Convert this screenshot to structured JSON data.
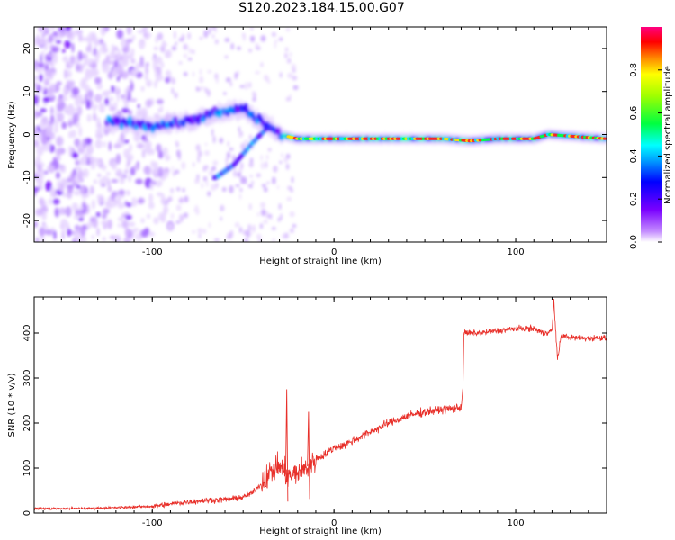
{
  "title": "S120.2023.184.15.00.G07",
  "chart_data": [
    {
      "type": "heatmap",
      "xlabel": "Height of straight line (km)",
      "ylabel": "Frequency (Hz)",
      "xlim": [
        -165,
        150
      ],
      "ylim": [
        -25,
        25
      ],
      "xticks": [
        -100,
        0,
        100
      ],
      "yticks": [
        -20,
        -10,
        0,
        10,
        20
      ],
      "colorbar": {
        "label": "Normalized spectral amplitude",
        "range": [
          0.0,
          1.0
        ],
        "ticks": [
          0.0,
          0.2,
          0.4,
          0.6,
          0.8
        ]
      },
      "ridge": [
        {
          "x": -120,
          "f": 3
        },
        {
          "x": -100,
          "f": 2
        },
        {
          "x": -80,
          "f": 3
        },
        {
          "x": -65,
          "f": 5
        },
        {
          "x": -50,
          "f": 6
        },
        {
          "x": -40,
          "f": 3
        },
        {
          "x": -30,
          "f": 0
        },
        {
          "x": -20,
          "f": -1
        },
        {
          "x": 0,
          "f": -1
        },
        {
          "x": 60,
          "f": -1
        },
        {
          "x": 75,
          "f": -1.5
        },
        {
          "x": 90,
          "f": -1
        },
        {
          "x": 110,
          "f": -1
        },
        {
          "x": 118,
          "f": 0
        },
        {
          "x": 150,
          "f": -1
        }
      ],
      "branch": [
        {
          "x": -65,
          "f": -10
        },
        {
          "x": -55,
          "f": -7
        },
        {
          "x": -45,
          "f": -2
        },
        {
          "x": -38,
          "f": 1
        }
      ]
    },
    {
      "type": "line",
      "xlabel": "Height of straight line (km)",
      "ylabel": "SNR (10 * v/v)",
      "xlim": [
        -165,
        150
      ],
      "ylim": [
        0,
        480
      ],
      "xticks": [
        -100,
        0,
        100
      ],
      "yticks": [
        0,
        100,
        200,
        300,
        400
      ],
      "color": "#e8302a",
      "series": [
        {
          "x": [
            -165,
            -140,
            -120,
            -100,
            -90,
            -80,
            -70,
            -60,
            -50,
            -45,
            -40,
            -35,
            -30,
            -25,
            -20,
            -15,
            -10,
            -5,
            0,
            5,
            10,
            15,
            20,
            25,
            30,
            40,
            50,
            60,
            65,
            70,
            71,
            71.5,
            80,
            90,
            100,
            110,
            115,
            120,
            121,
            123,
            125,
            130,
            140,
            150
          ],
          "y": [
            10,
            10,
            12,
            15,
            20,
            25,
            28,
            30,
            35,
            45,
            65,
            90,
            105,
            80,
            90,
            100,
            120,
            130,
            145,
            150,
            160,
            170,
            180,
            190,
            200,
            215,
            225,
            230,
            232,
            235,
            280,
            400,
            400,
            405,
            410,
            410,
            400,
            405,
            470,
            340,
            395,
            390,
            388,
            390
          ]
        }
      ],
      "spikes": [
        {
          "x": -26,
          "y": 275
        },
        {
          "x": -14,
          "y": 225
        }
      ]
    }
  ]
}
